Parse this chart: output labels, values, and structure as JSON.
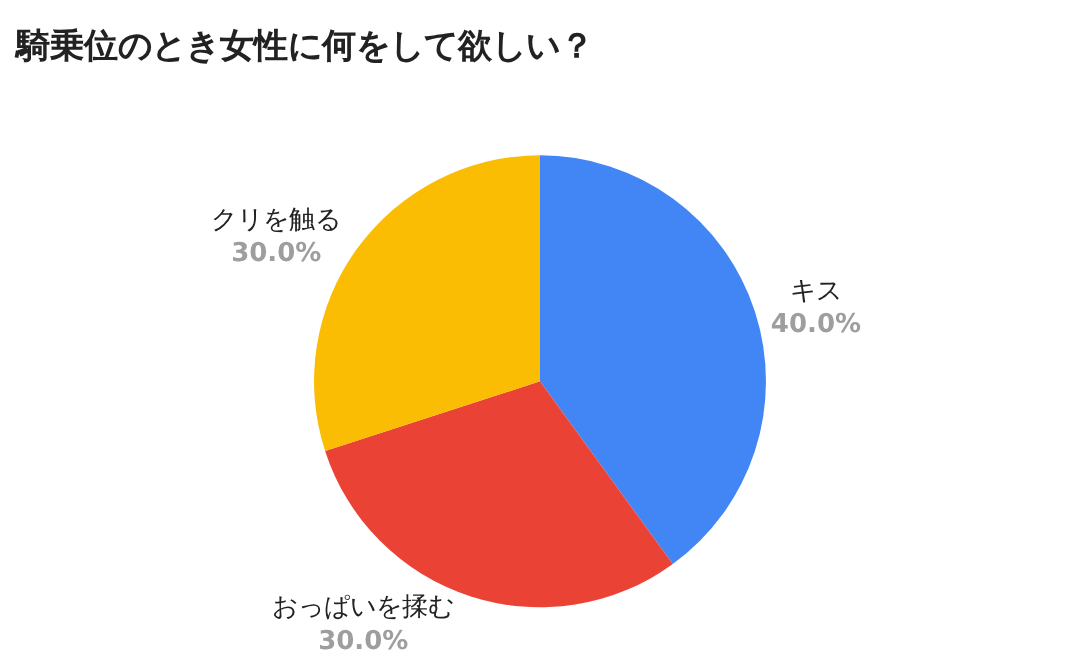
{
  "chart_data": {
    "type": "pie",
    "title": "騎乗位のとき女性に何をして欲しい？",
    "categories": [
      "キス",
      "おっぱいを揉む",
      "クリを触る"
    ],
    "values": [
      40,
      30,
      30
    ],
    "value_labels": [
      "40.0%",
      "30.0%",
      "30.0%"
    ],
    "colors": [
      "#4285f4",
      "#ea4335",
      "#fbbc04"
    ],
    "legend": false
  }
}
